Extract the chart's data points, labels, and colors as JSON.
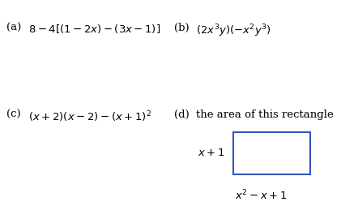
{
  "bg_color": "#ffffff",
  "label_a": "(a)",
  "expr_a": "$8-4[(1-2x)-(3x-1)]$",
  "label_b": "(b)",
  "expr_b": "$(2x^3y)(-x^2y^3)$",
  "label_c": "(c)",
  "expr_c": "$(x+2)(x-2)-(x+1)^2$",
  "label_d": "(d)",
  "expr_d_text_pre": "the area of this rectangle",
  "expr_d_side": "$x+1$",
  "expr_d_bottom": "$x^2-x+1$",
  "rect_color": "#3355bb",
  "font_size_main": 9.5,
  "text_color": "#000000",
  "label_color": "#000000",
  "highlight_color": "#0000cc"
}
